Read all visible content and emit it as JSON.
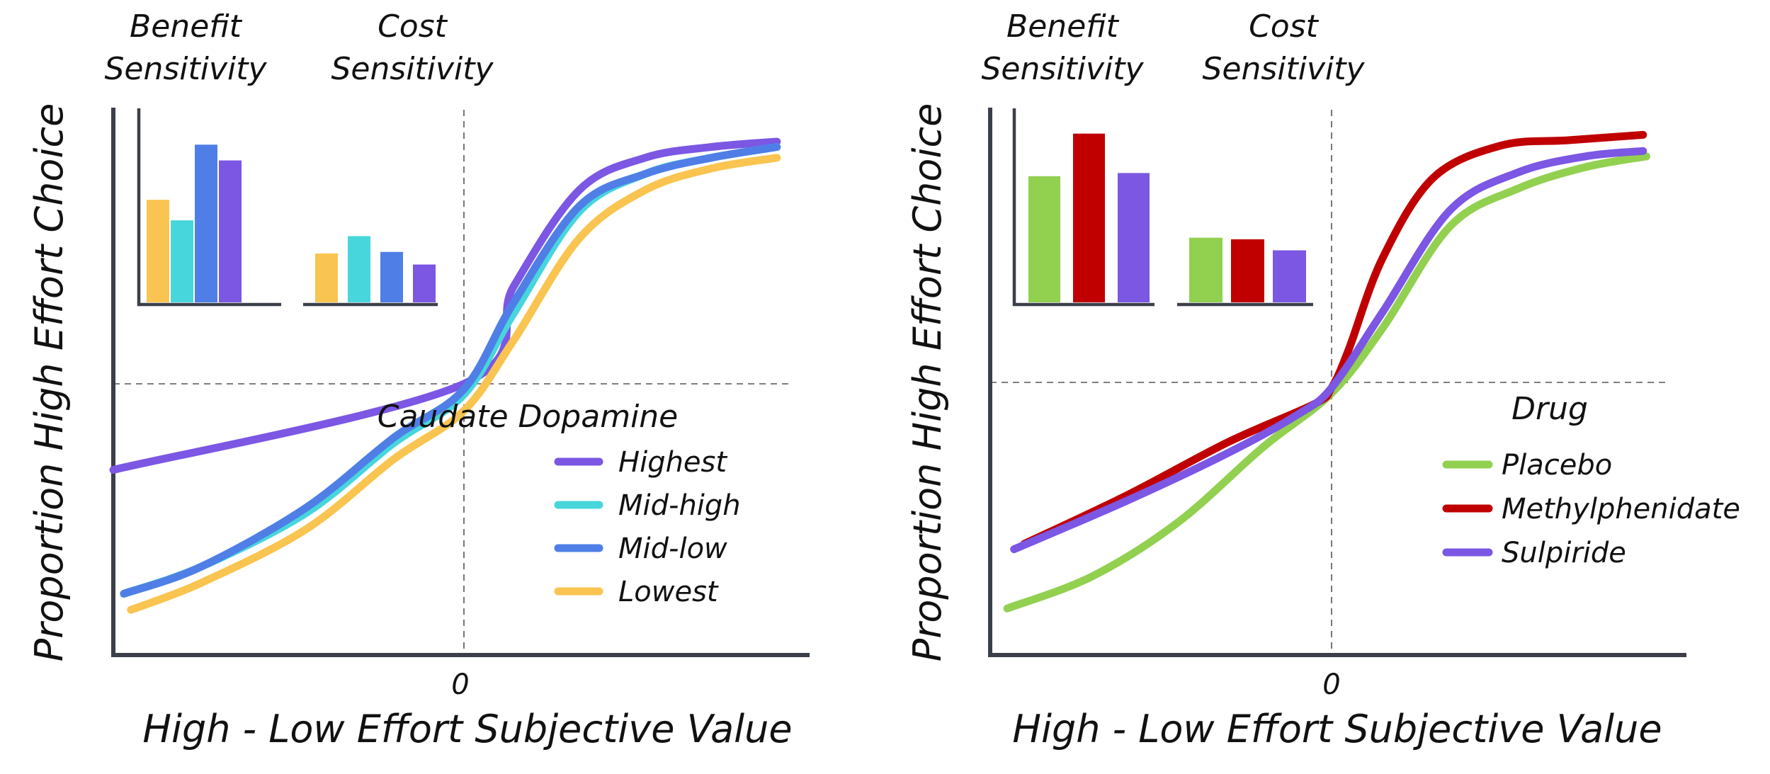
{
  "chart_data": [
    {
      "type": "line",
      "xlabel": "High - Low Effort Subjective Value",
      "ylabel": "Proportion High Effort Choice",
      "x_tick_labels": [
        "0"
      ],
      "reference_lines": {
        "x": 0,
        "y": 0.5
      },
      "legend_title": "Caudate Dopamine",
      "legend_position": "center-right",
      "series": [
        {
          "name": "Highest",
          "color": "#7B57E4",
          "x": [
            -1.0,
            0.0,
            0.15,
            0.35,
            0.55,
            0.75,
            0.95
          ],
          "y": [
            0.34,
            0.5,
            0.68,
            0.86,
            0.92,
            0.94,
            0.95
          ]
        },
        {
          "name": "Mid-high",
          "color": "#46D6DC",
          "x": [
            -0.97,
            -0.75,
            -0.45,
            -0.2,
            0.0,
            0.15,
            0.35,
            0.55,
            0.75,
            0.95
          ],
          "y": [
            0.11,
            0.16,
            0.26,
            0.39,
            0.48,
            0.63,
            0.82,
            0.89,
            0.92,
            0.94
          ]
        },
        {
          "name": "Mid-low",
          "color": "#4F7FE6",
          "x": [
            -0.97,
            -0.75,
            -0.45,
            -0.2,
            0.0,
            0.15,
            0.35,
            0.55,
            0.75,
            0.95
          ],
          "y": [
            0.11,
            0.16,
            0.27,
            0.4,
            0.49,
            0.65,
            0.83,
            0.89,
            0.92,
            0.94
          ]
        },
        {
          "name": "Lowest",
          "color": "#F9C44F",
          "x": [
            -0.95,
            -0.75,
            -0.45,
            -0.2,
            0.0,
            0.15,
            0.35,
            0.55,
            0.75,
            0.95
          ],
          "y": [
            0.08,
            0.13,
            0.23,
            0.36,
            0.45,
            0.58,
            0.77,
            0.86,
            0.9,
            0.92
          ]
        }
      ],
      "insets": [
        {
          "type": "bar",
          "title": "Benefit Sensitivity",
          "categories": [
            "Lowest",
            "Mid-high",
            "Mid-low",
            "Highest"
          ],
          "colors": [
            "#F9C44F",
            "#46D6DC",
            "#4F7FE6",
            "#7B57E4"
          ],
          "values": [
            0.65,
            0.52,
            1.0,
            0.9
          ],
          "ylim": [
            0,
            1.1
          ]
        },
        {
          "type": "bar",
          "title": "Cost Sensitivity",
          "categories": [
            "Lowest",
            "Mid-high",
            "Mid-low",
            "Highest"
          ],
          "colors": [
            "#F9C44F",
            "#46D6DC",
            "#4F7FE6",
            "#7B57E4"
          ],
          "values": [
            0.31,
            0.42,
            0.32,
            0.24
          ],
          "ylim": [
            0,
            1.1
          ]
        }
      ]
    },
    {
      "type": "line",
      "xlabel": "High - Low Effort Subjective Value",
      "ylabel": "Proportion High Effort Choice",
      "x_tick_labels": [
        "0"
      ],
      "reference_lines": {
        "x": 0,
        "y": 0.5
      },
      "legend_title": "Drug",
      "legend_position": "center-right",
      "series": [
        {
          "name": "Placebo",
          "color": "#92D050",
          "x": [
            -0.95,
            -0.7,
            -0.45,
            -0.2,
            0.0,
            0.15,
            0.35,
            0.55,
            0.75,
            0.93
          ],
          "y": [
            0.08,
            0.14,
            0.24,
            0.38,
            0.48,
            0.6,
            0.79,
            0.86,
            0.9,
            0.92
          ]
        },
        {
          "name": "Methylphenidate",
          "color": "#C00000",
          "x": [
            -0.9,
            -0.6,
            -0.3,
            -0.05,
            0.0,
            0.05,
            0.15,
            0.3,
            0.5,
            0.7,
            0.92
          ],
          "y": [
            0.2,
            0.29,
            0.39,
            0.46,
            0.49,
            0.56,
            0.73,
            0.88,
            0.94,
            0.95,
            0.96
          ]
        },
        {
          "name": "Sulpiride",
          "color": "#7B57E4",
          "x": [
            -0.93,
            -0.6,
            -0.3,
            -0.1,
            0.0,
            0.15,
            0.35,
            0.55,
            0.75,
            0.92
          ],
          "y": [
            0.19,
            0.28,
            0.37,
            0.44,
            0.49,
            0.63,
            0.82,
            0.89,
            0.92,
            0.93
          ]
        }
      ],
      "insets": [
        {
          "type": "bar",
          "title": "Benefit Sensitivity",
          "categories": [
            "Placebo",
            "Methylphenidate",
            "Sulpiride"
          ],
          "colors": [
            "#92D050",
            "#C00000",
            "#7B57E4"
          ],
          "values": [
            0.8,
            1.07,
            0.82
          ],
          "ylim": [
            0,
            1.1
          ]
        },
        {
          "type": "bar",
          "title": "Cost Sensitivity",
          "categories": [
            "Placebo",
            "Methylphenidate",
            "Sulpiride"
          ],
          "colors": [
            "#92D050",
            "#C00000",
            "#7B57E4"
          ],
          "values": [
            0.41,
            0.4,
            0.33
          ],
          "ylim": [
            0,
            1.1
          ]
        }
      ]
    }
  ]
}
